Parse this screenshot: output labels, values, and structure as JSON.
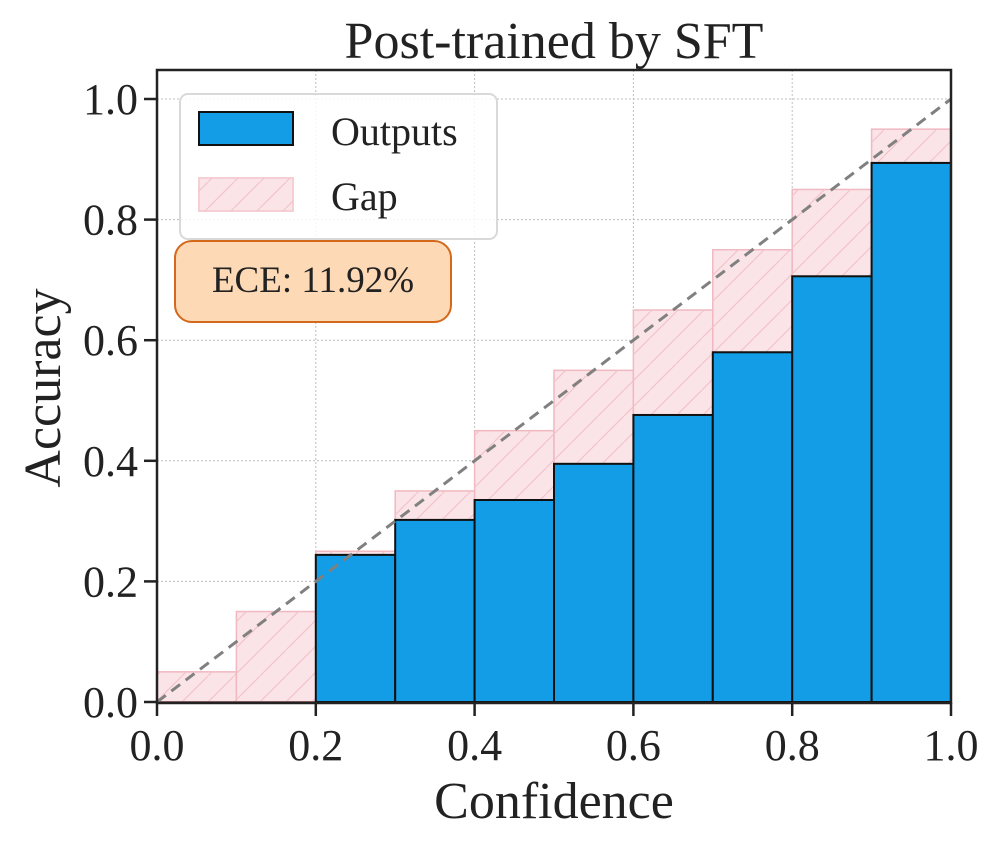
{
  "chart_data": {
    "type": "bar",
    "title": "Post-trained by SFT",
    "xlabel": "Confidence",
    "ylabel": "Accuracy",
    "xlim": [
      0.0,
      1.0
    ],
    "ylim": [
      0.0,
      1.05
    ],
    "xticks": [
      "0.0",
      "0.2",
      "0.4",
      "0.6",
      "0.8",
      "1.0"
    ],
    "yticks": [
      "0.0",
      "0.2",
      "0.4",
      "0.6",
      "0.8",
      "1.0"
    ],
    "grid": true,
    "legend_position": "upper left",
    "bins": [
      {
        "left": 0.0,
        "right": 0.1,
        "center": 0.05
      },
      {
        "left": 0.1,
        "right": 0.2,
        "center": 0.15
      },
      {
        "left": 0.2,
        "right": 0.3,
        "center": 0.25
      },
      {
        "left": 0.3,
        "right": 0.4,
        "center": 0.35
      },
      {
        "left": 0.4,
        "right": 0.5,
        "center": 0.45
      },
      {
        "left": 0.5,
        "right": 0.6,
        "center": 0.55
      },
      {
        "left": 0.6,
        "right": 0.7,
        "center": 0.65
      },
      {
        "left": 0.7,
        "right": 0.8,
        "center": 0.75
      },
      {
        "left": 0.8,
        "right": 0.9,
        "center": 0.85
      },
      {
        "left": 0.9,
        "right": 1.0,
        "center": 0.95
      }
    ],
    "categories": [
      "0.0-0.1",
      "0.1-0.2",
      "0.2-0.3",
      "0.3-0.4",
      "0.4-0.5",
      "0.5-0.6",
      "0.6-0.7",
      "0.7-0.8",
      "0.8-0.9",
      "0.9-1.0"
    ],
    "series": [
      {
        "name": "Outputs",
        "color": "#129de6",
        "edgecolor": "#111111",
        "values": [
          0.0,
          0.0,
          0.244,
          0.302,
          0.335,
          0.395,
          0.476,
          0.58,
          0.706,
          0.894
        ]
      },
      {
        "name": "Gap",
        "color": "#fbe4e7",
        "edgecolor": "#f0b8c0",
        "hatch": "/",
        "values": [
          0.05,
          0.15,
          0.25,
          0.35,
          0.45,
          0.55,
          0.65,
          0.75,
          0.85,
          0.95
        ]
      }
    ],
    "reference_line": {
      "type": "diagonal",
      "style": "dashed",
      "color": "#808080",
      "from": [
        0,
        0
      ],
      "to": [
        1,
        1
      ]
    },
    "annotation": {
      "text": "ECE: 11.92%",
      "facecolor": "#fdd9b5",
      "edgecolor": "#d4691c"
    },
    "legend": [
      {
        "label": "Outputs",
        "color": "#129de6"
      },
      {
        "label": "Gap",
        "color": "#fbe4e7"
      }
    ]
  }
}
